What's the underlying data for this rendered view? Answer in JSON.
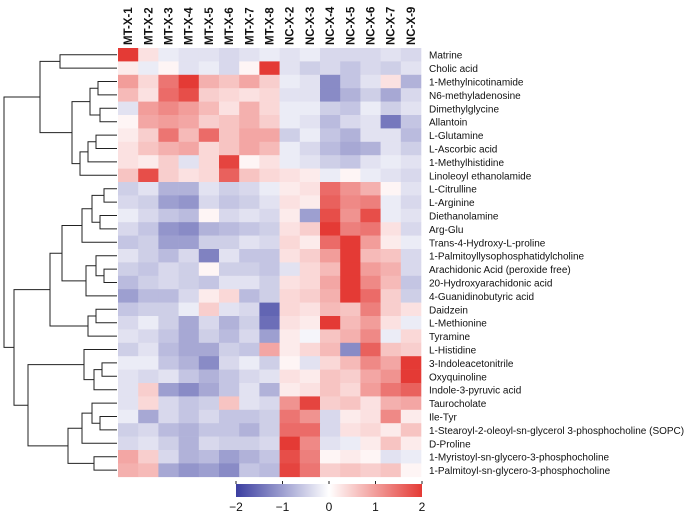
{
  "chart_data": {
    "type": "heatmap",
    "title": "",
    "columns": [
      "MT-X-1",
      "MT-X-2",
      "MT-X-3",
      "MT-X-4",
      "MT-X-5",
      "MT-X-6",
      "MT-X-7",
      "MT-X-8",
      "NC-X-2",
      "NC-X-3",
      "NC-X-4",
      "NC-X-5",
      "NC-X-6",
      "NC-X-7",
      "NC-X-9"
    ],
    "rows": [
      "Matrine",
      "Cholic acid",
      "1-Methylnicotinamide",
      "N6-methyladenosine",
      "Dimethylglycine",
      "Allantoin",
      "L-Glutamine",
      "L-Ascorbic acid",
      "1-Methylhistidine",
      "Linoleoyl ethanolamide",
      "L-Citrulline",
      "L-Arginine",
      "Diethanolamine",
      "Arg-Glu",
      "Trans-4-Hydroxy-L-proline",
      "1-Palmitoyllysophosphatidylcholine",
      "Arachidonic Acid (peroxide free)",
      "20-Hydroxyarachidonic acid",
      "4-Guanidinobutyric acid",
      "Daidzein",
      "L-Methionine",
      "Tyramine",
      "L-Histidine",
      "3-Indoleacetonitrile",
      "Oxyquinoline",
      "Indole-3-pyruvic acid",
      "Taurocholate",
      "Ile-Tyr",
      "1-Stearoyl-2-oleoyl-sn-glycerol 3-phosphocholine (SOPC)",
      "D-Proline",
      "1-Myristoyl-sn-glycero-3-phosphocholine",
      "1-Palmitoyl-sn-glycero-3-phosphocholine"
    ],
    "values": [
      [
        2.2,
        0.3,
        -0.2,
        -0.3,
        -0.3,
        -0.4,
        -0.3,
        -0.2,
        -0.3,
        -0.2,
        -0.4,
        -0.4,
        -0.4,
        -0.3,
        -0.4
      ],
      [
        0.2,
        -0.2,
        0.1,
        -0.3,
        -0.2,
        -0.4,
        0.1,
        2.0,
        -0.3,
        -0.5,
        -0.4,
        -0.6,
        -0.4,
        -0.5,
        -0.3
      ],
      [
        1.0,
        0.4,
        1.4,
        2.0,
        0.8,
        0.6,
        0.9,
        0.5,
        -0.2,
        -0.3,
        -1.2,
        -0.6,
        -0.3,
        0.3,
        -0.8
      ],
      [
        0.7,
        0.3,
        1.5,
        1.8,
        0.5,
        0.4,
        0.3,
        0.4,
        -0.3,
        -0.3,
        -1.2,
        -0.8,
        -0.5,
        -0.9,
        -0.4
      ],
      [
        -0.3,
        1.0,
        1.2,
        1.0,
        0.7,
        0.3,
        0.8,
        0.4,
        -0.2,
        -0.2,
        -0.5,
        -0.6,
        -0.2,
        -0.5,
        -0.3
      ],
      [
        0.1,
        0.9,
        1.0,
        0.9,
        0.5,
        0.6,
        0.8,
        0.5,
        -0.2,
        -0.3,
        -0.7,
        -0.4,
        -0.3,
        -1.4,
        -0.6
      ],
      [
        0.2,
        0.5,
        1.4,
        0.7,
        1.5,
        0.6,
        0.9,
        0.9,
        -0.5,
        -0.2,
        -0.6,
        -0.8,
        -0.3,
        -0.3,
        -0.7
      ],
      [
        0.3,
        0.6,
        0.8,
        0.9,
        0.4,
        0.6,
        0.9,
        0.7,
        -0.2,
        -0.4,
        -0.7,
        -0.9,
        -0.8,
        -0.3,
        -0.5
      ],
      [
        0.3,
        0.2,
        0.5,
        -0.3,
        0.4,
        1.9,
        0.1,
        0.3,
        -0.2,
        -0.3,
        -0.5,
        -0.6,
        -0.3,
        -0.2,
        -0.3
      ],
      [
        0.6,
        1.8,
        0.5,
        0.3,
        0.4,
        1.6,
        0.6,
        0.4,
        0.3,
        0.2,
        -0.2,
        0.1,
        -0.2,
        -0.3,
        -0.4
      ],
      [
        -0.5,
        -0.3,
        -0.8,
        -0.8,
        -0.3,
        -0.5,
        -0.4,
        -0.2,
        0.2,
        0.3,
        1.5,
        1.1,
        0.8,
        0.1,
        -0.3
      ],
      [
        -0.4,
        -0.5,
        -1.0,
        -1.1,
        -0.4,
        -0.6,
        -0.5,
        -0.3,
        0.3,
        0.2,
        1.6,
        1.2,
        1.3,
        -0.2,
        -0.4
      ],
      [
        -0.2,
        -0.4,
        -0.6,
        -0.7,
        0.1,
        -0.4,
        -0.3,
        -0.4,
        0.2,
        -1.0,
        1.8,
        1.1,
        1.8,
        -0.2,
        -0.3
      ],
      [
        -0.4,
        -0.6,
        -1.1,
        -1.2,
        -0.8,
        -0.7,
        -0.6,
        -0.5,
        0.3,
        0.5,
        2.0,
        1.3,
        1.4,
        0.3,
        -0.4
      ],
      [
        -0.6,
        -0.5,
        -1.0,
        -1.0,
        -0.5,
        -0.5,
        -0.3,
        -0.4,
        0.4,
        0.2,
        1.5,
        2.0,
        1.0,
        0.2,
        -0.2
      ],
      [
        -0.3,
        -0.5,
        -0.7,
        -0.4,
        -1.3,
        -0.3,
        -0.6,
        -0.6,
        0.3,
        0.5,
        1.0,
        2.1,
        0.7,
        0.6,
        -0.4
      ],
      [
        -0.5,
        -0.6,
        -0.4,
        -0.5,
        0.1,
        -0.5,
        -0.5,
        -0.6,
        -0.3,
        0.4,
        0.7,
        2.2,
        1.0,
        0.8,
        -0.4
      ],
      [
        -0.7,
        -0.5,
        -0.4,
        -0.5,
        -0.6,
        -0.3,
        -0.3,
        -0.5,
        0.3,
        0.4,
        0.9,
        2.2,
        1.2,
        0.7,
        -0.6
      ],
      [
        -1.0,
        -0.7,
        -0.7,
        -0.4,
        0.2,
        0.4,
        -0.7,
        -0.5,
        0.4,
        0.5,
        0.8,
        2.0,
        1.5,
        0.5,
        -0.5
      ],
      [
        -0.6,
        -0.5,
        -0.5,
        -0.2,
        0.5,
        -0.3,
        -0.4,
        -1.6,
        0.4,
        0.3,
        0.7,
        0.6,
        1.3,
        0.5,
        0.3
      ],
      [
        -0.4,
        -0.2,
        -0.5,
        -0.9,
        -0.4,
        -0.8,
        -0.5,
        -1.5,
        0.3,
        0.2,
        2.0,
        0.7,
        1.0,
        0.3,
        -0.2
      ],
      [
        -0.3,
        -0.4,
        -0.6,
        -0.9,
        -0.5,
        -0.7,
        -0.4,
        -1.0,
        0.2,
        -0.1,
        0.6,
        0.8,
        1.2,
        -0.2,
        0.4
      ],
      [
        -0.5,
        -0.3,
        -0.7,
        -0.9,
        -0.9,
        -0.5,
        -0.6,
        0.9,
        0.2,
        0.4,
        0.7,
        -1.2,
        1.6,
        0.6,
        0.5
      ],
      [
        -0.2,
        -0.2,
        -0.6,
        -0.8,
        -1.2,
        -0.4,
        -0.2,
        -0.5,
        0.1,
        -0.3,
        0.4,
        0.7,
        1.2,
        0.9,
        2.1
      ],
      [
        -0.3,
        -0.4,
        -0.3,
        -0.6,
        -0.8,
        -0.6,
        -0.4,
        -0.3,
        0.3,
        0.2,
        0.6,
        0.5,
        0.9,
        1.1,
        2.0
      ],
      [
        -0.3,
        0.5,
        -1.0,
        -1.2,
        -0.9,
        -0.6,
        -0.3,
        -0.8,
        0.2,
        0.3,
        0.6,
        0.4,
        1.0,
        1.4,
        1.6
      ],
      [
        -0.3,
        0.4,
        -0.4,
        -0.6,
        -0.5,
        0.6,
        -0.3,
        -0.4,
        1.1,
        1.9,
        0.5,
        0.6,
        0.3,
        0.8,
        0.9
      ],
      [
        -0.2,
        -0.9,
        -0.4,
        -0.6,
        -0.4,
        -0.6,
        -0.6,
        -0.5,
        1.4,
        1.1,
        -0.4,
        0.2,
        0.3,
        1.2,
        0.2
      ],
      [
        -0.5,
        -0.4,
        -0.7,
        -0.8,
        -0.6,
        -0.6,
        -0.8,
        -0.5,
        1.5,
        1.5,
        -0.4,
        0.3,
        0.4,
        0.2,
        0.6
      ],
      [
        -0.4,
        -0.3,
        -0.5,
        -0.8,
        -0.4,
        -0.5,
        -0.5,
        -0.4,
        2.0,
        1.2,
        -0.3,
        -0.2,
        0.2,
        0.6,
        0.2
      ],
      [
        0.9,
        0.5,
        -0.4,
        -0.8,
        -0.7,
        -1.0,
        -0.8,
        -0.6,
        1.8,
        1.3,
        0.1,
        0.2,
        0.1,
        -0.3,
        -0.2
      ],
      [
        0.8,
        0.7,
        -0.9,
        -1.1,
        -1.0,
        -1.2,
        -0.6,
        -0.7,
        1.9,
        1.4,
        0.5,
        0.6,
        0.5,
        0.6,
        0.1
      ]
    ],
    "color_range": [
      -2,
      2
    ],
    "colors": {
      "low": "#3b3ea0",
      "mid": "#ffffff",
      "high": "#e43a35"
    },
    "colorbar_ticks": [
      "−2",
      "−1",
      "0",
      "1",
      "2"
    ],
    "dendrogram": "rows"
  }
}
